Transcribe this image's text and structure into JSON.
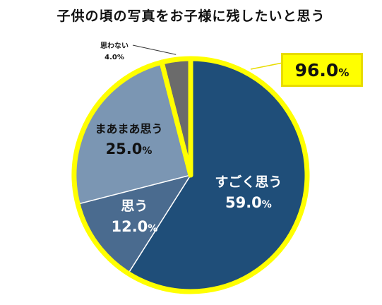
{
  "title": "子供の頃の写真をお子様に残したいと思う",
  "chart_data": {
    "type": "pie",
    "title": "子供の頃の写真をお子様に残したいと思う",
    "slices": [
      {
        "label": "すごく思う",
        "value": 59.0,
        "display": "59.0",
        "color": "#1f4e79"
      },
      {
        "label": "思う",
        "value": 12.0,
        "display": "12.0",
        "color": "#4a6b8f"
      },
      {
        "label": "まあまあ思う",
        "value": 25.0,
        "display": "25.0",
        "color": "#7b96b3"
      },
      {
        "label": "思わない",
        "value": 4.0,
        "display": "4.0",
        "color": "#6b6b6b"
      }
    ],
    "unit": "%",
    "highlight": {
      "value": "96.0",
      "unit": "%",
      "color": "#ffff00"
    }
  }
}
